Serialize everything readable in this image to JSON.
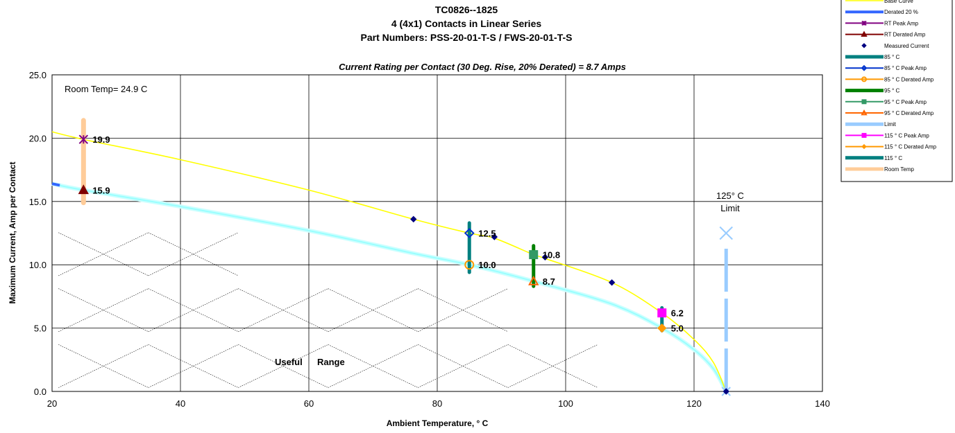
{
  "chart_data": {
    "type": "line",
    "title": [
      "TC0826--1825",
      "4 (4x1) Contacts in Linear Series",
      "Part Numbers: PSS-20-01-T-S / FWS-20-01-T-S"
    ],
    "subtitle": "Current Rating per Contact (30 Deg. Rise, 20% Derated)  =  8.7 Amps",
    "xlabel": "Ambient Temperature,  ° C",
    "ylabel": "Maximum Current, Amp per Contact",
    "xlim": [
      20,
      140
    ],
    "ylim": [
      0,
      25
    ],
    "x_ticks": [
      "20",
      "40",
      "60",
      "80",
      "100",
      "120",
      "140"
    ],
    "y_ticks": [
      "0.0",
      "5.0",
      "10.0",
      "15.0",
      "20.0",
      "25.0"
    ],
    "grid": true,
    "legend_position": "top-right",
    "annotations": {
      "room_temp": "Room Temp= 24.9 C",
      "limit_line1": "125° C",
      "limit_line2": "Limit",
      "useful": "Useful",
      "range": "Range"
    },
    "series": [
      {
        "name": "Base Curve",
        "color": "#ffff00",
        "kind": "curve",
        "x": [
          20,
          24.9,
          40,
          60,
          76.3,
          85,
          88.9,
          95,
          96.8,
          107.2,
          115,
          120,
          123,
          125
        ],
        "y": [
          20.5,
          19.9,
          18.3,
          15.9,
          13.6,
          12.5,
          12.1,
          10.8,
          10.5,
          8.6,
          6.2,
          4.1,
          2.3,
          0
        ]
      },
      {
        "name": "Derated 20 %",
        "color": "#3366ff",
        "kind": "curve",
        "x": [
          20,
          24.9,
          40,
          60,
          76.3,
          85,
          95,
          107.2,
          115,
          120,
          123,
          125
        ],
        "y": [
          16.4,
          15.9,
          14.6,
          12.7,
          10.9,
          10.0,
          8.7,
          6.9,
          5.0,
          3.3,
          1.8,
          0
        ]
      },
      {
        "name": "RT Peak Amp",
        "color": "#800080",
        "kind": "point",
        "marker": "star",
        "x": [
          24.9
        ],
        "y": [
          19.9
        ]
      },
      {
        "name": "RT Derated Amp",
        "color": "#800000",
        "kind": "point",
        "marker": "triangle",
        "x": [
          24.9
        ],
        "y": [
          15.9
        ]
      },
      {
        "name": "Measured Current",
        "color": "#000080",
        "kind": "point",
        "marker": "diamond",
        "x": [
          76.3,
          88.9,
          96.8,
          107.2,
          125
        ],
        "y": [
          13.6,
          12.2,
          10.6,
          8.6,
          0
        ]
      },
      {
        "name": "85 ° C",
        "color": "#008080",
        "kind": "vbar",
        "x": [
          85,
          85
        ],
        "y": [
          9.4,
          13.3
        ]
      },
      {
        "name": "85  ° C Peak Amp",
        "color": "#0033cc",
        "kind": "point",
        "marker": "diamond-open",
        "x": [
          85
        ],
        "y": [
          12.5
        ]
      },
      {
        "name": "85  ° C Derated Amp",
        "color": "#ff9900",
        "kind": "point",
        "marker": "circle-open",
        "x": [
          85
        ],
        "y": [
          10.0
        ]
      },
      {
        "name": "95  ° C",
        "color": "#008000",
        "kind": "vbar",
        "x": [
          95,
          95
        ],
        "y": [
          8.3,
          11.5
        ]
      },
      {
        "name": "95  ° C Peak Amp",
        "color": "#339966",
        "kind": "point",
        "marker": "square",
        "x": [
          95
        ],
        "y": [
          10.8
        ]
      },
      {
        "name": "95  ° C Derated Amp",
        "color": "#ff6600",
        "kind": "point",
        "marker": "triangle-open",
        "x": [
          95
        ],
        "y": [
          8.7
        ]
      },
      {
        "name": "Limit",
        "color": "#99ccff",
        "kind": "dashed",
        "x": [
          125,
          125
        ],
        "y": [
          0,
          12.5
        ]
      },
      {
        "name": "115  ° C Peak Amp",
        "color": "#ff00ff",
        "kind": "point",
        "marker": "square",
        "x": [
          115
        ],
        "y": [
          6.2
        ]
      },
      {
        "name": "115  ° C Derated Amp",
        "color": "#ff9900",
        "kind": "point",
        "marker": "diamond",
        "x": [
          115
        ],
        "y": [
          5.0
        ]
      },
      {
        "name": "115  ° C",
        "color": "#008080",
        "kind": "vbar",
        "x": [
          115,
          115
        ],
        "y": [
          4.8,
          6.6
        ]
      },
      {
        "name": "Room Temp",
        "color": "#ffcc99",
        "kind": "vbar",
        "x": [
          24.9,
          24.9
        ],
        "y": [
          14.9,
          21.4
        ]
      }
    ],
    "data_labels": [
      {
        "text": "19.9",
        "x": 24.9,
        "y": 19.9
      },
      {
        "text": "15.9",
        "x": 24.9,
        "y": 15.9
      },
      {
        "text": "12.5",
        "x": 85,
        "y": 12.5
      },
      {
        "text": "10.0",
        "x": 85,
        "y": 10.0
      },
      {
        "text": "10.8",
        "x": 95,
        "y": 10.8
      },
      {
        "text": "8.7",
        "x": 95,
        "y": 8.7
      },
      {
        "text": "6.2",
        "x": 115,
        "y": 6.2
      },
      {
        "text": "5.0",
        "x": 115,
        "y": 5.0
      }
    ]
  }
}
